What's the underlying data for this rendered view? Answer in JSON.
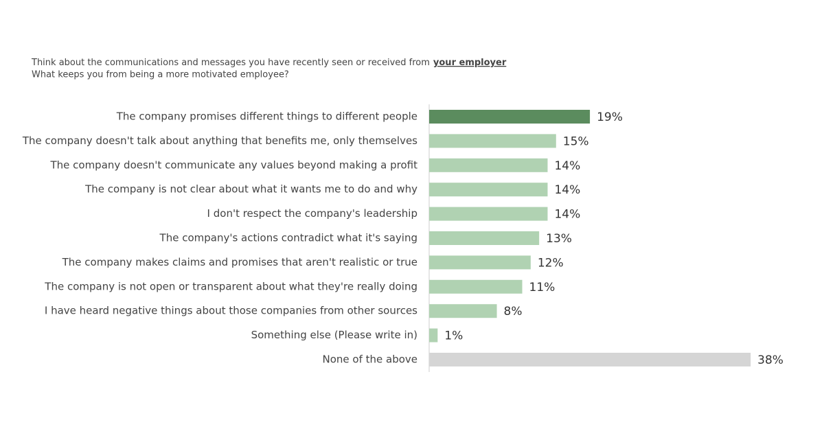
{
  "chart_data": {
    "type": "hbar",
    "title": "Think about the communications and messages you have recently seen or received from",
    "title_emphasis": "your employer",
    "subtitle": "What keeps you from being a more motivated employee?",
    "categories": [
      "The company promises different things to different people",
      "The company doesn't talk about anything that benefits me, only themselves",
      "The company doesn't communicate any values beyond making a profit",
      "The company is not clear about what it wants me to do and why",
      "I don't respect the company's leadership",
      "The company's actions contradict what it's saying",
      "The company makes claims and promises that aren't realistic or true",
      "The company is not open or transparent about what they're really doing",
      "I have heard negative things about those companies from other sources",
      "Something else (Please write in)",
      "None of the above"
    ],
    "values": [
      19,
      15,
      14,
      14,
      14,
      13,
      12,
      11,
      8,
      1,
      38
    ],
    "value_labels": [
      "19%",
      "15%",
      "14%",
      "14%",
      "14%",
      "13%",
      "12%",
      "11%",
      "8%",
      "1%",
      "38%"
    ],
    "colors": [
      "#5b8c5e",
      "#b0d2b2",
      "#b0d2b2",
      "#b0d2b2",
      "#b0d2b2",
      "#b0d2b2",
      "#b0d2b2",
      "#b0d2b2",
      "#b0d2b2",
      "#b0d2b2",
      "#d5d5d5"
    ]
  }
}
